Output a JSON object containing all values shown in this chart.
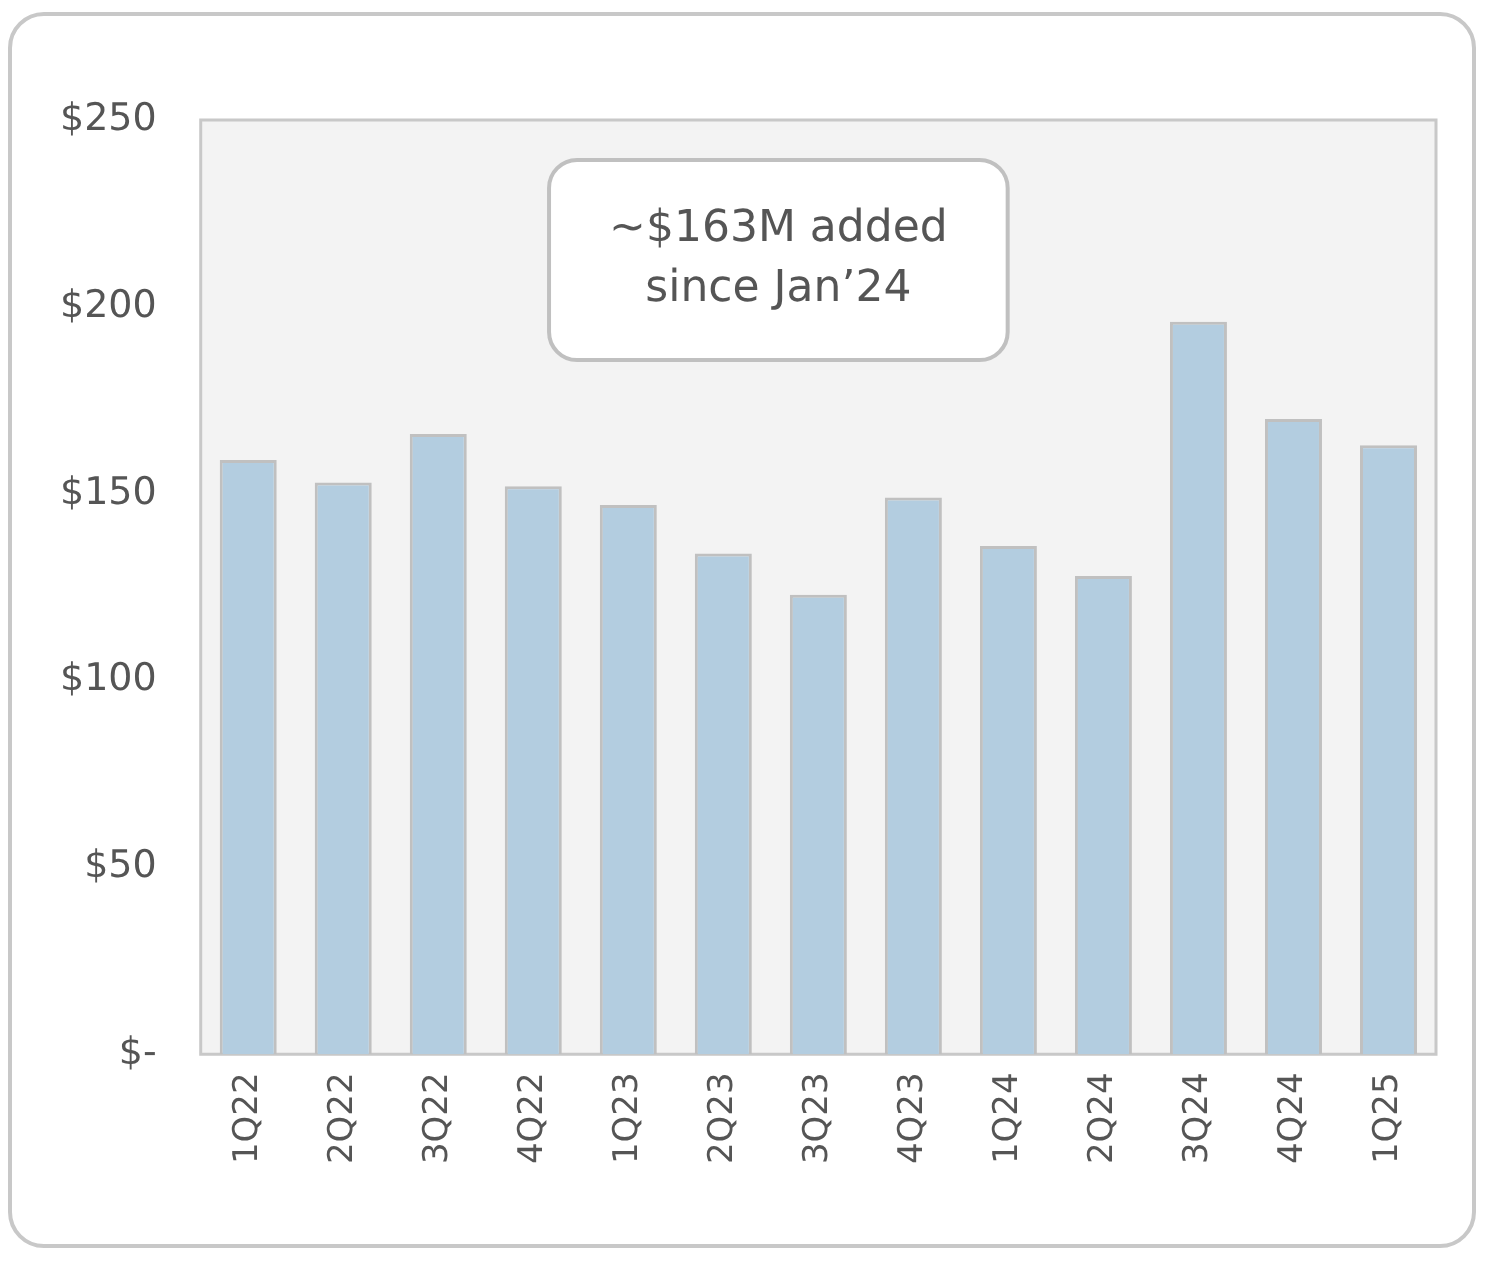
{
  "chart_data": {
    "type": "bar",
    "categories": [
      "1Q22",
      "2Q22",
      "3Q22",
      "4Q22",
      "1Q23",
      "2Q23",
      "3Q23",
      "4Q23",
      "1Q24",
      "2Q24",
      "3Q24",
      "4Q24",
      "1Q25"
    ],
    "values": [
      159,
      153,
      166,
      152,
      147,
      134,
      123,
      149,
      136,
      128,
      196,
      170,
      163
    ],
    "color": "#b3cde0",
    "ylim": [
      0,
      250
    ],
    "yticks": [
      {
        "value": 0,
        "label": "$-"
      },
      {
        "value": 50,
        "label": "$50"
      },
      {
        "value": 100,
        "label": "$100"
      },
      {
        "value": 150,
        "label": "$150"
      },
      {
        "value": 200,
        "label": "$200"
      },
      {
        "value": 250,
        "label": "$250"
      }
    ],
    "grid": false,
    "legend": false,
    "annotations": [
      "~$163M added\nsince Jan’24"
    ]
  }
}
